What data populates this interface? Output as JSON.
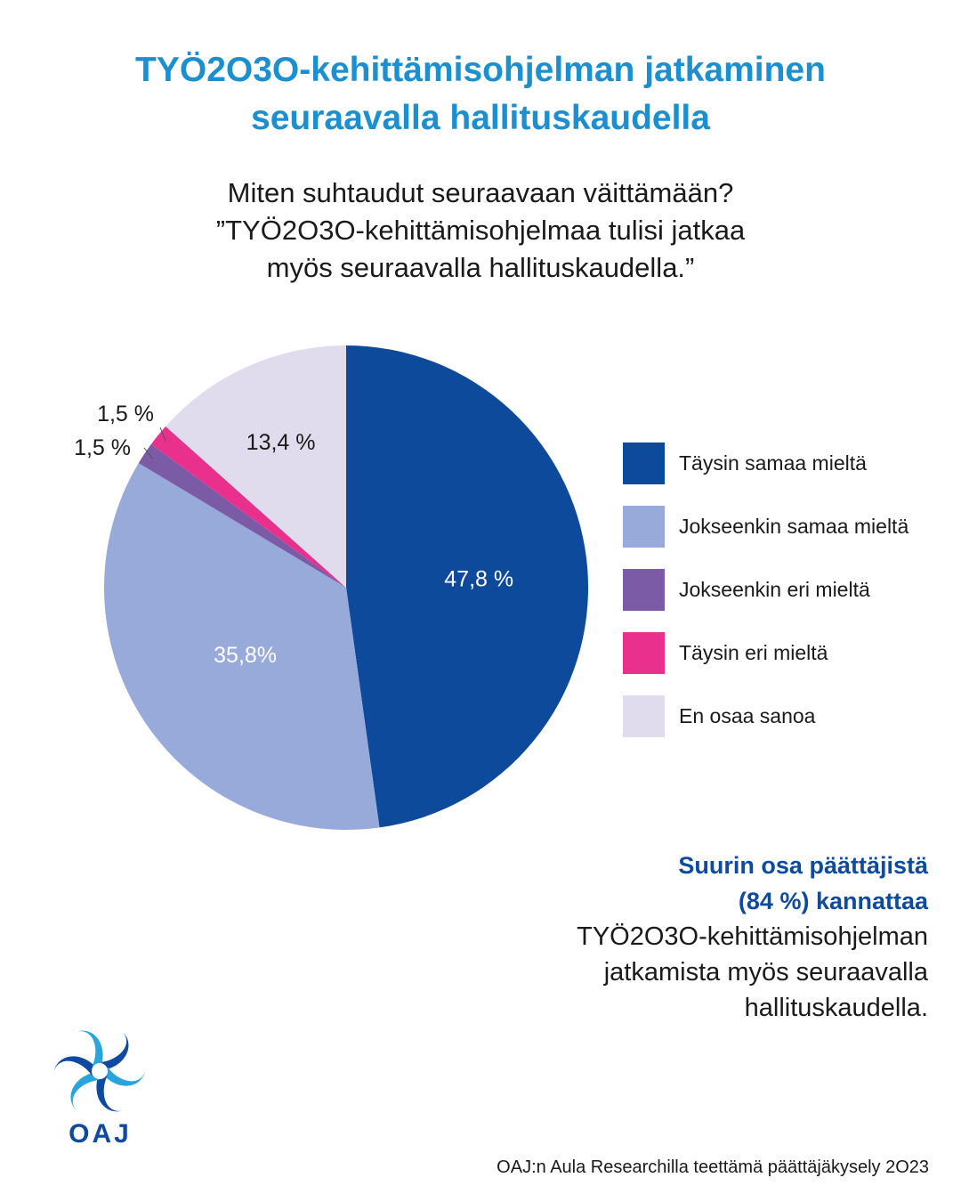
{
  "title_lines": [
    "TYÖ2O3O-kehittämisohjelman jatkaminen",
    "seuraavalla hallituskaudella"
  ],
  "question_lines": [
    "Miten suhtaudut seuraavaan väittämään?",
    "”TYÖ2O3O-kehittämisohjelmaa tulisi jatkaa",
    "myös seuraavalla hallituskaudella.”"
  ],
  "chart_data": {
    "type": "pie",
    "slices": [
      {
        "name": "Täysin samaa mieltä",
        "value": 47.8,
        "label": "47,8 %",
        "color": "#0e4a9b",
        "label_color": "#ffffff"
      },
      {
        "name": "Jokseenkin samaa mieltä",
        "value": 35.8,
        "label": "35,8%",
        "color": "#97aad9",
        "label_color": "#ffffff"
      },
      {
        "name": "Jokseenkin eri mieltä",
        "value": 1.5,
        "label": "1,5 %",
        "color": "#7b5ba6",
        "label_color": "#1a1a1a"
      },
      {
        "name": "Täysin eri mieltä",
        "value": 1.5,
        "label": "1,5 %",
        "color": "#e8308c",
        "label_color": "#1a1a1a"
      },
      {
        "name": "En osaa sanoa",
        "value": 13.4,
        "label": "13,4 %",
        "color": "#e1dced",
        "label_color": "#1a1a1a"
      }
    ],
    "start": "12 o'clock",
    "direction": "clockwise",
    "legend_placement": "right"
  },
  "summary": {
    "bold_lines": [
      "Suurin osa päättäjistä",
      "(84 %) kannattaa"
    ],
    "text_lines": [
      "TYÖ2O3O-kehittämisohjelman",
      "jatkamista myös seuraavalla",
      "hallituskaudella."
    ]
  },
  "logo": {
    "text": "OAJ"
  },
  "source": "OAJ:n Aula Researchilla teettämä päättäjäkysely 2O23"
}
